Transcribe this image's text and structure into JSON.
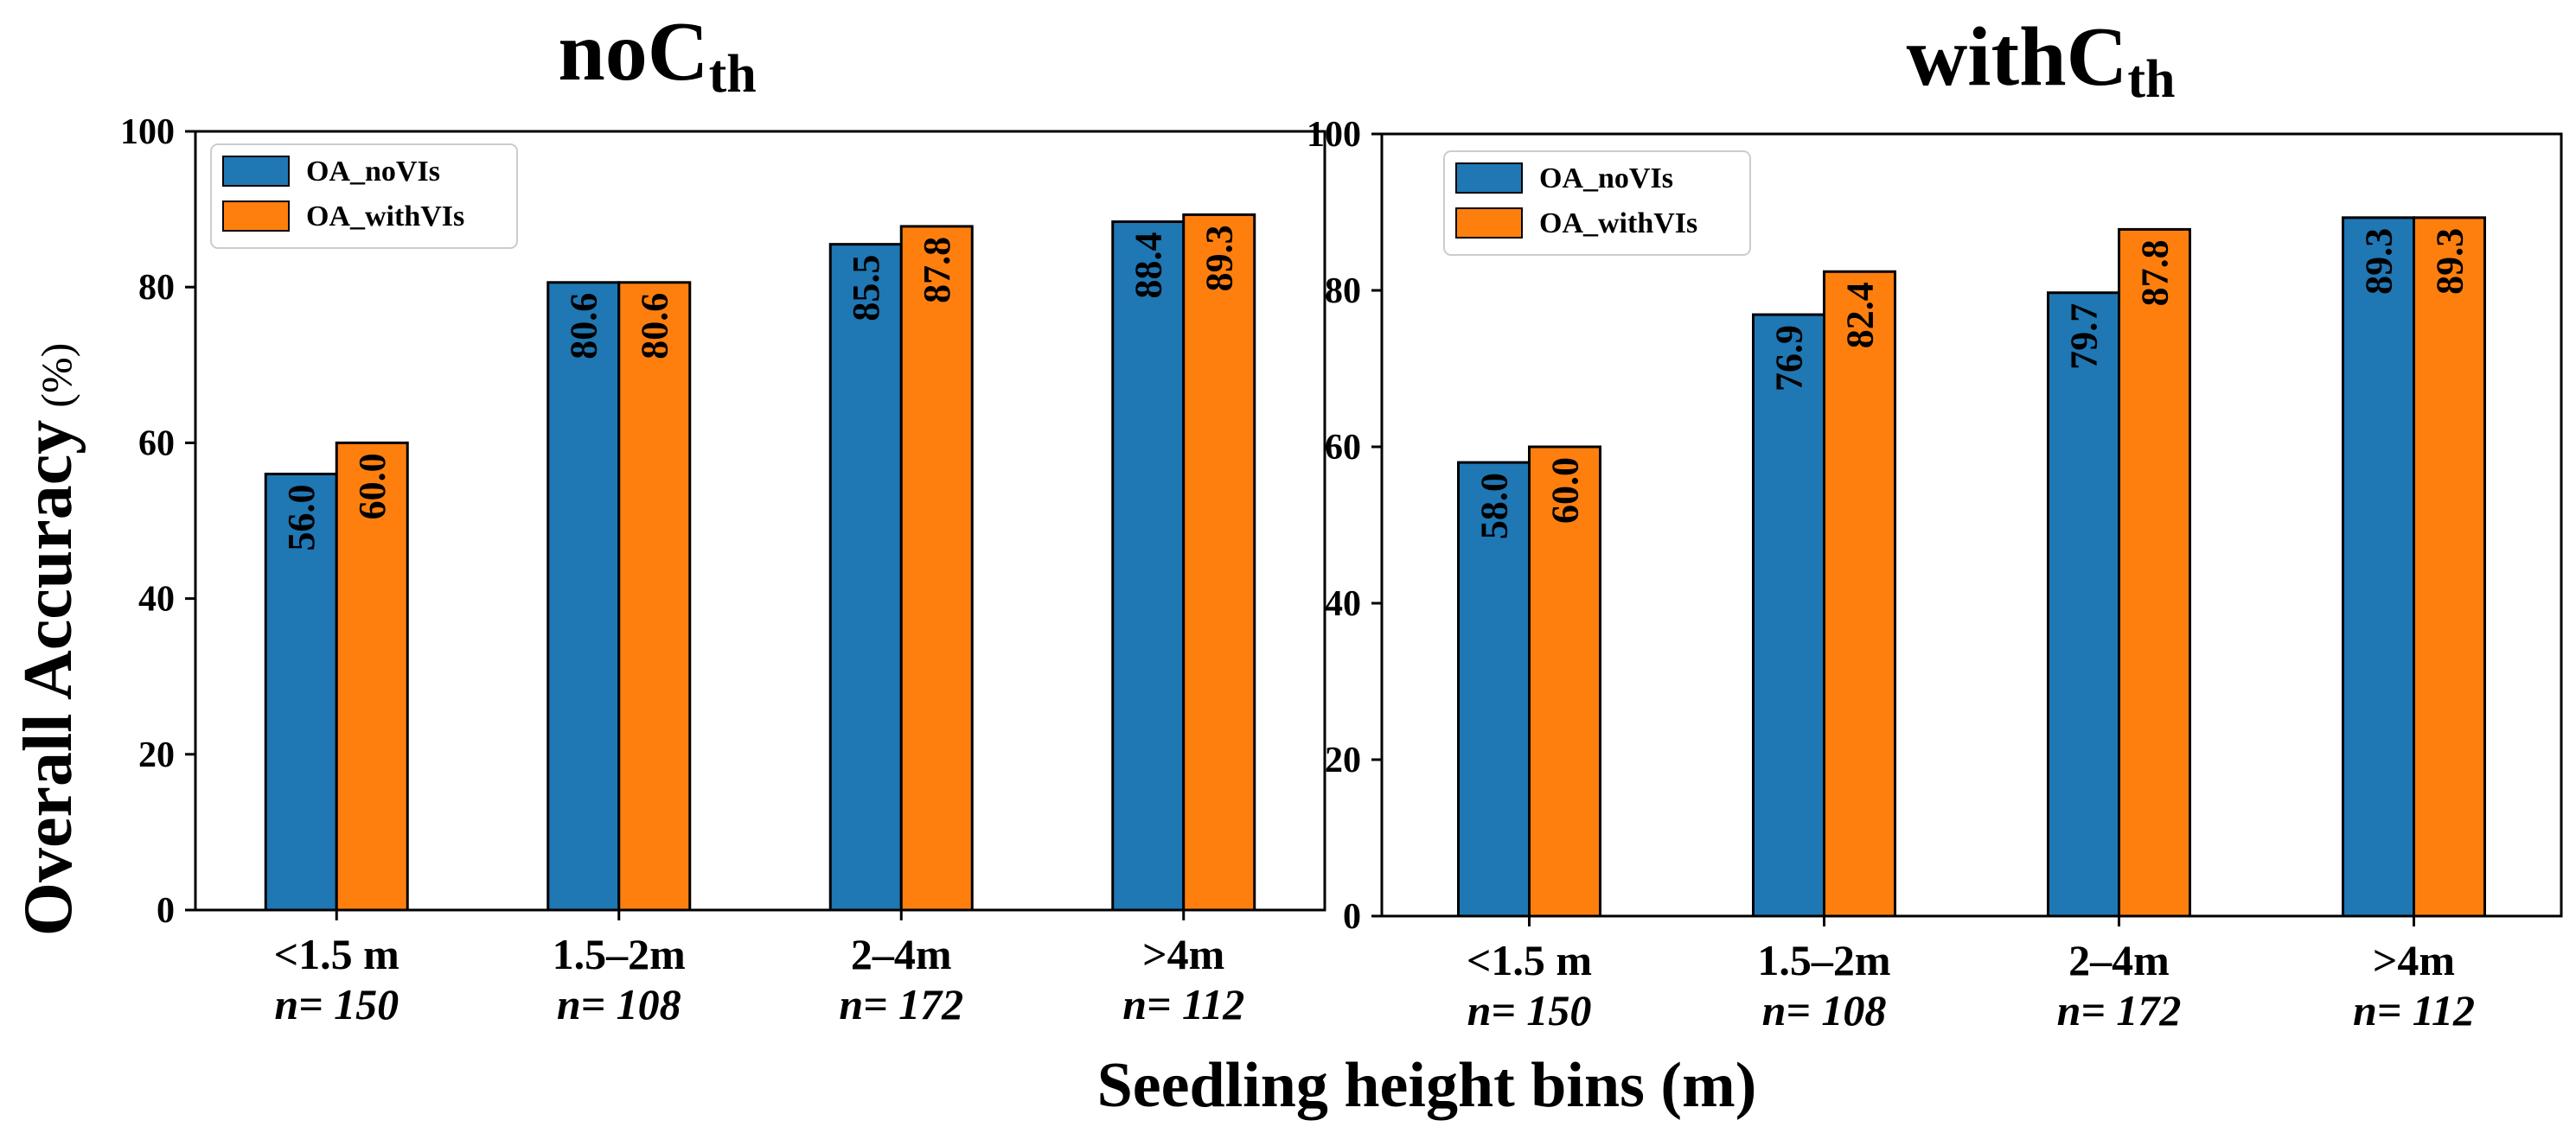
{
  "figure": {
    "ylabel": "Overall Accuracy",
    "ylabel_unit": "(%)",
    "xlabel": "Seedling height bins (m)"
  },
  "chart_data": [
    {
      "type": "bar",
      "title": "noC",
      "title_sub": "th",
      "categories": [
        "<1.5 m",
        "1.5–2m",
        "2–4m",
        ">4m"
      ],
      "sample_sizes": [
        "n= 150",
        "n= 108",
        "n= 172",
        "n= 112"
      ],
      "series": [
        {
          "name": "OA_noVIs",
          "color": "#1f77b4",
          "values": [
            56.0,
            80.6,
            85.5,
            88.4
          ],
          "labels": [
            "56.0",
            "80.6",
            "85.5",
            "88.4"
          ]
        },
        {
          "name": "OA_withVIs",
          "color": "#ff7f0e",
          "values": [
            60.0,
            80.6,
            87.8,
            89.3
          ],
          "labels": [
            "60.0",
            "80.6",
            "87.8",
            "89.3"
          ]
        }
      ],
      "ylim": [
        0,
        100
      ],
      "yticks": [
        "0",
        "20",
        "40",
        "60",
        "80",
        "100"
      ],
      "legend": "top-left"
    },
    {
      "type": "bar",
      "title": "withC",
      "title_sub": "th",
      "categories": [
        "<1.5 m",
        "1.5–2m",
        "2–4m",
        ">4m"
      ],
      "sample_sizes": [
        "n= 150",
        "n= 108",
        "n= 172",
        "n= 112"
      ],
      "series": [
        {
          "name": "OA_noVIs",
          "color": "#1f77b4",
          "values": [
            58.0,
            76.9,
            79.7,
            89.3
          ],
          "labels": [
            "58.0",
            "76.9",
            "79.7",
            "89.3"
          ]
        },
        {
          "name": "OA_withVIs",
          "color": "#ff7f0e",
          "values": [
            60.0,
            82.4,
            87.8,
            89.3
          ],
          "labels": [
            "60.0",
            "82.4",
            "87.8",
            "89.3"
          ]
        }
      ],
      "ylim": [
        0,
        100
      ],
      "yticks": [
        "0",
        "20",
        "40",
        "60",
        "80",
        "100"
      ],
      "legend": "top-left"
    }
  ]
}
